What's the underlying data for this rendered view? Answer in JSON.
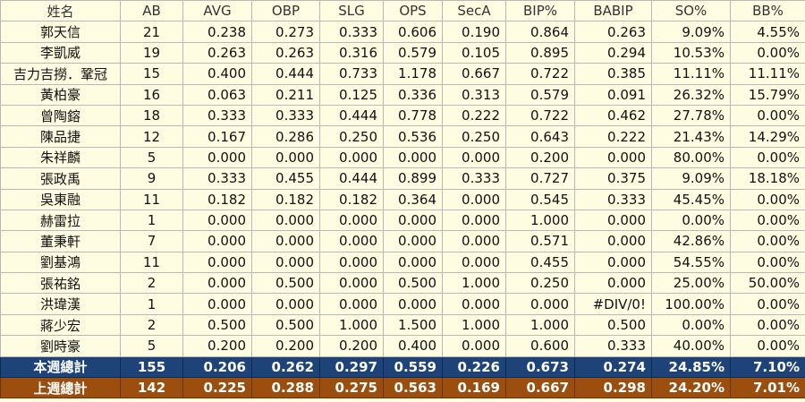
{
  "headers": [
    "姓名",
    "AB",
    "AVG",
    "OBP",
    "SLG",
    "OPS",
    "SecA",
    "BIP%",
    "BABIP",
    "SO%",
    "BB%"
  ],
  "rows": [
    [
      "郭天信",
      "21",
      "0.238",
      "0.273",
      "0.333",
      "0.606",
      "0.190",
      "0.864",
      "0.263",
      "9.09%",
      "4.55%"
    ],
    [
      "李凱威",
      "19",
      "0.263",
      "0.263",
      "0.316",
      "0.579",
      "0.105",
      "0.895",
      "0.294",
      "10.53%",
      "0.00%"
    ],
    [
      "吉力吉撈．鞏冠",
      "15",
      "0.400",
      "0.444",
      "0.733",
      "1.178",
      "0.667",
      "0.722",
      "0.385",
      "11.11%",
      "11.11%"
    ],
    [
      "黃柏豪",
      "16",
      "0.063",
      "0.211",
      "0.125",
      "0.336",
      "0.313",
      "0.579",
      "0.091",
      "26.32%",
      "15.79%"
    ],
    [
      "曾陶鎔",
      "18",
      "0.333",
      "0.333",
      "0.444",
      "0.778",
      "0.222",
      "0.722",
      "0.462",
      "27.78%",
      "0.00%"
    ],
    [
      "陳品捷",
      "12",
      "0.167",
      "0.286",
      "0.250",
      "0.536",
      "0.250",
      "0.643",
      "0.222",
      "21.43%",
      "14.29%"
    ],
    [
      "朱祥麟",
      "5",
      "0.000",
      "0.000",
      "0.000",
      "0.000",
      "0.000",
      "0.200",
      "0.000",
      "80.00%",
      "0.00%"
    ],
    [
      "張政禹",
      "9",
      "0.333",
      "0.455",
      "0.444",
      "0.899",
      "0.333",
      "0.727",
      "0.375",
      "9.09%",
      "18.18%"
    ],
    [
      "吳東融",
      "11",
      "0.182",
      "0.182",
      "0.182",
      "0.364",
      "0.000",
      "0.545",
      "0.333",
      "45.45%",
      "0.00%"
    ],
    [
      "赫雷拉",
      "1",
      "0.000",
      "0.000",
      "0.000",
      "0.000",
      "0.000",
      "1.000",
      "0.000",
      "0.00%",
      "0.00%"
    ],
    [
      "董秉軒",
      "7",
      "0.000",
      "0.000",
      "0.000",
      "0.000",
      "0.000",
      "0.571",
      "0.000",
      "42.86%",
      "0.00%"
    ],
    [
      "劉基鴻",
      "11",
      "0.000",
      "0.000",
      "0.000",
      "0.000",
      "0.000",
      "0.455",
      "0.000",
      "54.55%",
      "0.00%"
    ],
    [
      "張祐銘",
      "2",
      "0.000",
      "0.500",
      "0.000",
      "0.500",
      "1.000",
      "0.250",
      "0.000",
      "25.00%",
      "50.00%"
    ],
    [
      "洪瑋漢",
      "1",
      "0.000",
      "0.000",
      "0.000",
      "0.000",
      "0.000",
      "0.000",
      "#DIV/0!",
      "100.00%",
      "0.00%"
    ],
    [
      "蔣少宏",
      "2",
      "0.500",
      "0.500",
      "1.000",
      "1.500",
      "1.000",
      "1.000",
      "0.500",
      "0.00%",
      "0.00%"
    ],
    [
      "劉時豪",
      "5",
      "0.200",
      "0.200",
      "0.200",
      "0.400",
      "0.000",
      "0.600",
      "0.333",
      "40.00%",
      "0.00%"
    ]
  ],
  "totals": {
    "this_week": [
      "本週總計",
      "155",
      "0.206",
      "0.262",
      "0.297",
      "0.559",
      "0.226",
      "0.673",
      "0.274",
      "24.85%",
      "7.10%"
    ],
    "last_week": [
      "上週總計",
      "142",
      "0.225",
      "0.288",
      "0.275",
      "0.563",
      "0.169",
      "0.667",
      "0.298",
      "24.20%",
      "7.01%"
    ]
  },
  "colors": {
    "background": "#fffde1",
    "grid": "#b8b8b8",
    "this_week_row": "#1d4379",
    "last_week_row": "#9c4e0e",
    "total_text": "#ffffff"
  }
}
